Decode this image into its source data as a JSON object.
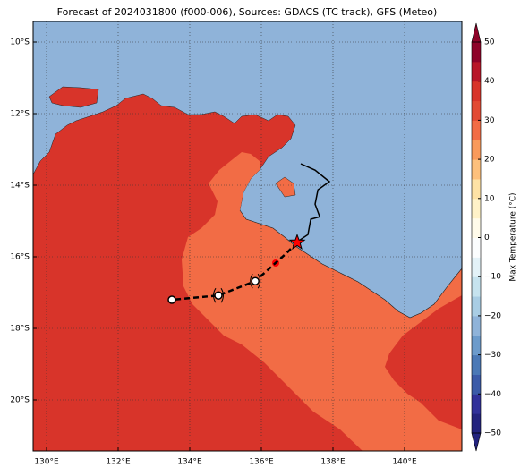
{
  "chart_data": {
    "type": "contour-map",
    "title": "Forecast of 2024031800 (f000-006), Sources: GDACS (TC track), GFS (Meteo)",
    "xlim": [
      129.625,
      141.6
    ],
    "ylim": [
      -21.425,
      -9.425
    ],
    "xticks": [
      {
        "value": 130,
        "label": "130°E"
      },
      {
        "value": 132,
        "label": "132°E"
      },
      {
        "value": 134,
        "label": "134°E"
      },
      {
        "value": 136,
        "label": "136°E"
      },
      {
        "value": 138,
        "label": "138°E"
      },
      {
        "value": 140,
        "label": "140°E"
      }
    ],
    "yticks": [
      {
        "value": -10,
        "label": "10°S"
      },
      {
        "value": -12,
        "label": "12°S"
      },
      {
        "value": -14,
        "label": "14°S"
      },
      {
        "value": -16,
        "label": "16°S"
      },
      {
        "value": -18,
        "label": "18°S"
      },
      {
        "value": -20,
        "label": "20°S"
      }
    ],
    "grid": true,
    "colorbar": {
      "label": "Max Temperature (°C)",
      "lim": [
        -50,
        50
      ],
      "ticks": [
        {
          "value": -50,
          "label": "−50"
        },
        {
          "value": -40,
          "label": "−40"
        },
        {
          "value": -30,
          "label": "−30"
        },
        {
          "value": -20,
          "label": "−20"
        },
        {
          "value": -10,
          "label": "−10"
        },
        0,
        10,
        20,
        30,
        40,
        50
      ],
      "colors": [
        "#23237e",
        "#31319a",
        "#3b5ba8",
        "#4b79b6",
        "#6c9bcb",
        "#8fb3d9",
        "#a9cde4",
        "#c6e3ef",
        "#e3f2f8",
        "#fbfdfe",
        "#fffbea",
        "#fff2c8",
        "#fee2a5",
        "#fdc07c",
        "#f99a5b",
        "#f26c45",
        "#e24a33",
        "#d8342a",
        "#b81628",
        "#8e0329"
      ]
    },
    "track": {
      "past": {
        "x": [
          137.0,
          137.3,
          137.38,
          137.63,
          137.5,
          137.58,
          137.9,
          137.5,
          137.1
        ],
        "y": [
          -15.58,
          -15.38,
          -14.95,
          -14.88,
          -14.53,
          -14.13,
          -13.9,
          -13.58,
          -13.4
        ]
      },
      "forecast": {
        "x": [
          137.0,
          136.7,
          135.83,
          134.8,
          133.5
        ],
        "y": [
          -15.6,
          -15.9,
          -16.68,
          -17.08,
          -17.2
        ]
      }
    }
  }
}
